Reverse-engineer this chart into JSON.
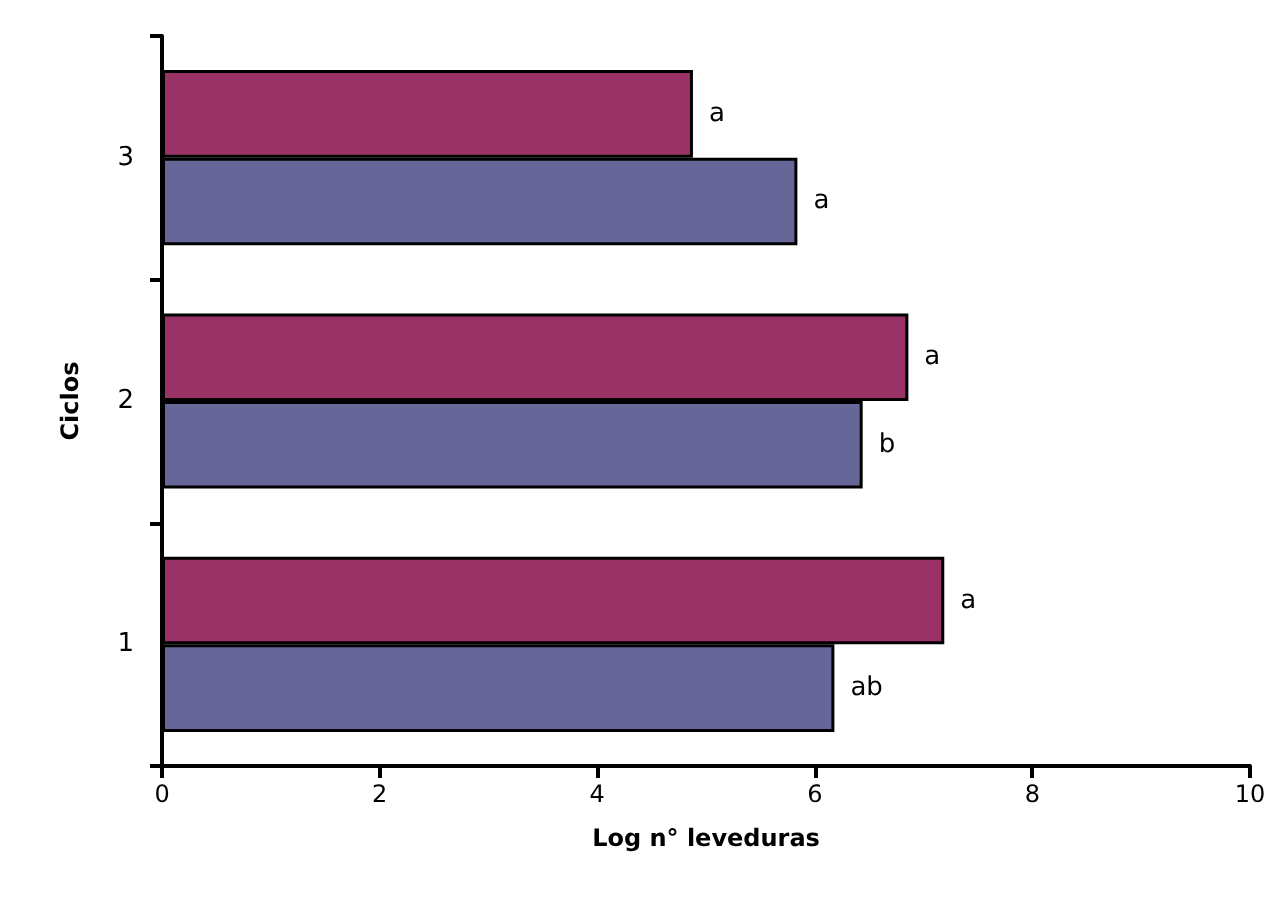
{
  "chart_data": {
    "type": "bar",
    "orientation": "horizontal",
    "xlabel": "Log n° leveduras",
    "ylabel": "Ciclos",
    "categories": [
      "3",
      "2",
      "1"
    ],
    "series": [
      {
        "color": "#993366",
        "values": [
          4.88,
          6.86,
          7.19
        ],
        "value_labels": [
          "a",
          "a",
          "a"
        ]
      },
      {
        "color": "#666699",
        "values": [
          5.84,
          6.44,
          6.18
        ],
        "value_labels": [
          "a",
          "b",
          "ab"
        ]
      }
    ],
    "xlim": [
      0,
      10
    ],
    "xticks": [
      0,
      2,
      4,
      6,
      8,
      10
    ],
    "grid": false
  }
}
